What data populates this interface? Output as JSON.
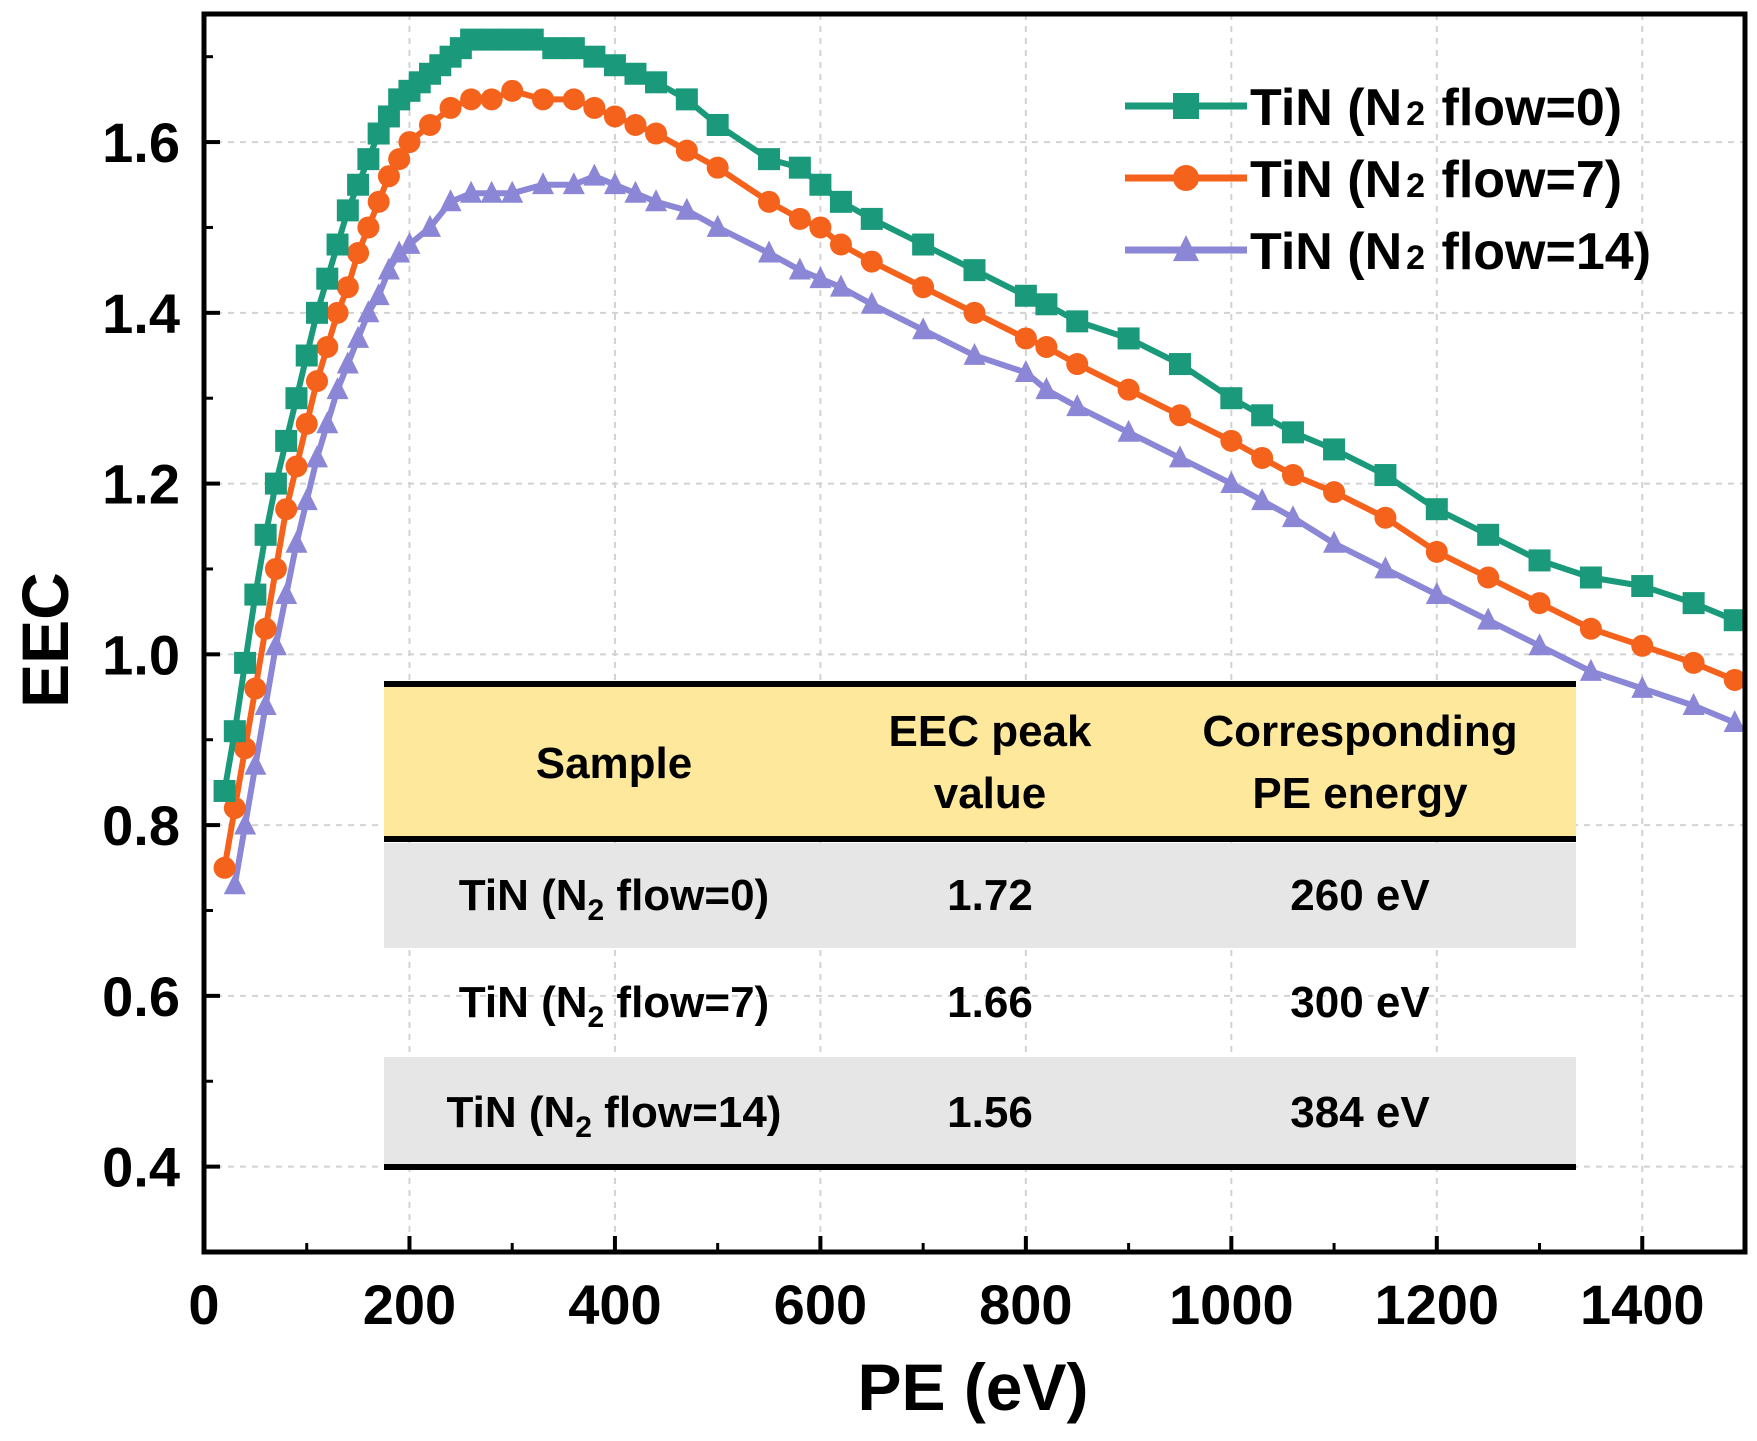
{
  "chart_data": {
    "type": "line",
    "xlabel": "PE (eV)",
    "ylabel": "EEC",
    "xlim": [
      0,
      1500
    ],
    "ylim": [
      0.3,
      1.75
    ],
    "x_ticks": [
      0,
      200,
      400,
      600,
      800,
      1000,
      1200,
      1400
    ],
    "y_ticks": [
      0.4,
      0.6,
      0.8,
      1.0,
      1.2,
      1.4,
      1.6
    ],
    "x_tick_labels": [
      "0",
      "200",
      "400",
      "600",
      "800",
      "1000",
      "1200",
      "1400"
    ],
    "y_tick_labels": [
      "0.4",
      "0.6",
      "0.8",
      "1.0",
      "1.2",
      "1.4",
      "1.6"
    ],
    "grid": true,
    "legend_position": "top-right",
    "series": [
      {
        "name": "TiN (N2 flow=0)",
        "label_main": "TiN (N",
        "label_sub": "2",
        "label_tail": " flow=0)",
        "color": "#1a9a7a",
        "marker": "square",
        "x": [
          20,
          30,
          40,
          50,
          60,
          70,
          80,
          90,
          100,
          110,
          120,
          130,
          140,
          150,
          160,
          170,
          180,
          190,
          200,
          210,
          220,
          230,
          240,
          250,
          260,
          280,
          300,
          320,
          340,
          360,
          380,
          400,
          420,
          440,
          470,
          500,
          550,
          580,
          600,
          620,
          650,
          700,
          750,
          800,
          820,
          850,
          900,
          950,
          1000,
          1030,
          1060,
          1100,
          1150,
          1200,
          1250,
          1300,
          1350,
          1400,
          1450,
          1490
        ],
        "y": [
          0.84,
          0.91,
          0.99,
          1.07,
          1.14,
          1.2,
          1.25,
          1.3,
          1.35,
          1.4,
          1.44,
          1.48,
          1.52,
          1.55,
          1.58,
          1.61,
          1.63,
          1.65,
          1.66,
          1.67,
          1.68,
          1.69,
          1.7,
          1.71,
          1.72,
          1.72,
          1.72,
          1.72,
          1.71,
          1.71,
          1.7,
          1.69,
          1.68,
          1.67,
          1.65,
          1.62,
          1.58,
          1.57,
          1.55,
          1.53,
          1.51,
          1.48,
          1.45,
          1.42,
          1.41,
          1.39,
          1.37,
          1.34,
          1.3,
          1.28,
          1.26,
          1.24,
          1.21,
          1.17,
          1.14,
          1.11,
          1.09,
          1.08,
          1.06,
          1.04
        ]
      },
      {
        "name": "TiN (N2 flow=7)",
        "label_main": "TiN (N",
        "label_sub": "2",
        "label_tail": " flow=7)",
        "color": "#f4621c",
        "marker": "circle",
        "x": [
          20,
          30,
          40,
          50,
          60,
          70,
          80,
          90,
          100,
          110,
          120,
          130,
          140,
          150,
          160,
          170,
          180,
          190,
          200,
          220,
          240,
          260,
          280,
          300,
          330,
          360,
          380,
          400,
          420,
          440,
          470,
          500,
          550,
          580,
          600,
          620,
          650,
          700,
          750,
          800,
          820,
          850,
          900,
          950,
          1000,
          1030,
          1060,
          1100,
          1150,
          1200,
          1250,
          1300,
          1350,
          1400,
          1450,
          1490
        ],
        "y": [
          0.75,
          0.82,
          0.89,
          0.96,
          1.03,
          1.1,
          1.17,
          1.22,
          1.27,
          1.32,
          1.36,
          1.4,
          1.43,
          1.47,
          1.5,
          1.53,
          1.56,
          1.58,
          1.6,
          1.62,
          1.64,
          1.65,
          1.65,
          1.66,
          1.65,
          1.65,
          1.64,
          1.63,
          1.62,
          1.61,
          1.59,
          1.57,
          1.53,
          1.51,
          1.5,
          1.48,
          1.46,
          1.43,
          1.4,
          1.37,
          1.36,
          1.34,
          1.31,
          1.28,
          1.25,
          1.23,
          1.21,
          1.19,
          1.16,
          1.12,
          1.09,
          1.06,
          1.03,
          1.01,
          0.99,
          0.97
        ]
      },
      {
        "name": "TiN (N2 flow=14)",
        "label_main": "TiN (N",
        "label_sub": "2",
        "label_tail": " flow=14)",
        "color": "#8b86d6",
        "marker": "triangle",
        "x": [
          30,
          40,
          50,
          60,
          70,
          80,
          90,
          100,
          110,
          120,
          130,
          140,
          150,
          160,
          170,
          180,
          190,
          200,
          220,
          240,
          260,
          280,
          300,
          330,
          360,
          380,
          400,
          420,
          440,
          470,
          500,
          550,
          580,
          600,
          620,
          650,
          700,
          750,
          800,
          820,
          850,
          900,
          950,
          1000,
          1030,
          1060,
          1100,
          1150,
          1200,
          1250,
          1300,
          1350,
          1400,
          1450,
          1490
        ],
        "y": [
          0.73,
          0.8,
          0.87,
          0.94,
          1.01,
          1.07,
          1.13,
          1.18,
          1.23,
          1.27,
          1.31,
          1.34,
          1.37,
          1.4,
          1.42,
          1.45,
          1.47,
          1.48,
          1.5,
          1.53,
          1.54,
          1.54,
          1.54,
          1.55,
          1.55,
          1.56,
          1.55,
          1.54,
          1.53,
          1.52,
          1.5,
          1.47,
          1.45,
          1.44,
          1.43,
          1.41,
          1.38,
          1.35,
          1.33,
          1.31,
          1.29,
          1.26,
          1.23,
          1.2,
          1.18,
          1.16,
          1.13,
          1.1,
          1.07,
          1.04,
          1.01,
          0.98,
          0.96,
          0.94,
          0.92
        ]
      }
    ],
    "table": {
      "headers": [
        {
          "line1": "Sample",
          "line2": ""
        },
        {
          "line1": "EEC peak",
          "line2": "value"
        },
        {
          "line1": "Corresponding",
          "line2": "PE energy"
        }
      ],
      "rows": [
        {
          "sample_main": "TiN (N",
          "sample_sub": "2",
          "sample_tail": " flow=0)",
          "peak": "1.72",
          "energy": "260 eV"
        },
        {
          "sample_main": "TiN (N",
          "sample_sub": "2",
          "sample_tail": " flow=7)",
          "peak": "1.66",
          "energy": "300 eV"
        },
        {
          "sample_main": "TiN (N",
          "sample_sub": "2",
          "sample_tail": " flow=14)",
          "peak": "1.56",
          "energy": "384 eV"
        }
      ],
      "header_color": "#fde89c",
      "stripe_color": "#e6e6e6"
    }
  }
}
